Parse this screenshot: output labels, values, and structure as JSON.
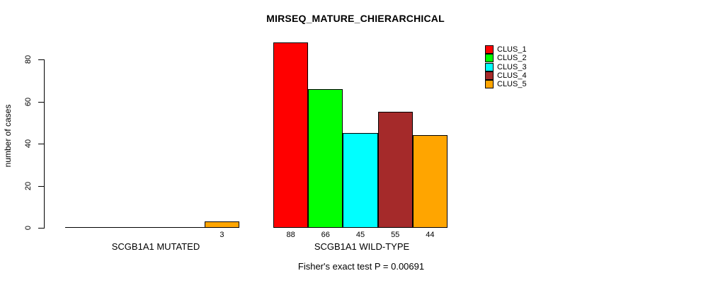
{
  "page": {
    "background_color": "#FFFFFF",
    "text_color": "#000000"
  },
  "chart_data": {
    "type": "bar",
    "title": "MIRSEQ_MATURE_CHIERARCHICAL",
    "xlabel": "",
    "ylabel": "number of cases",
    "categories": [
      "SCGB1A1 MUTATED",
      "SCGB1A1 WILD-TYPE"
    ],
    "series": [
      {
        "name": "CLUS_1",
        "color": "#FF0000",
        "values": [
          0,
          88
        ]
      },
      {
        "name": "CLUS_2",
        "color": "#00FF00",
        "values": [
          0,
          66
        ]
      },
      {
        "name": "CLUS_3",
        "color": "#00FFFF",
        "values": [
          0,
          45
        ]
      },
      {
        "name": "CLUS_4",
        "color": "#A52A2A",
        "values": [
          0,
          55
        ]
      },
      {
        "name": "CLUS_5",
        "color": "#FFA500",
        "values": [
          3,
          44
        ]
      }
    ],
    "bar_value_labels": [
      [
        "",
        "",
        "",
        "",
        "3"
      ],
      [
        "88",
        "66",
        "45",
        "55",
        "44"
      ]
    ],
    "yticks": [
      "0",
      "20",
      "40",
      "60",
      "80"
    ],
    "ylim": [
      0,
      88
    ],
    "grid": false,
    "bar_border_color": "#000000",
    "legend_position": "topright",
    "legend_entries": [
      "CLUS_1",
      "CLUS_2",
      "CLUS_3",
      "CLUS_4",
      "CLUS_5"
    ],
    "annotation": "Fisher's exact test P = 0.00691"
  }
}
